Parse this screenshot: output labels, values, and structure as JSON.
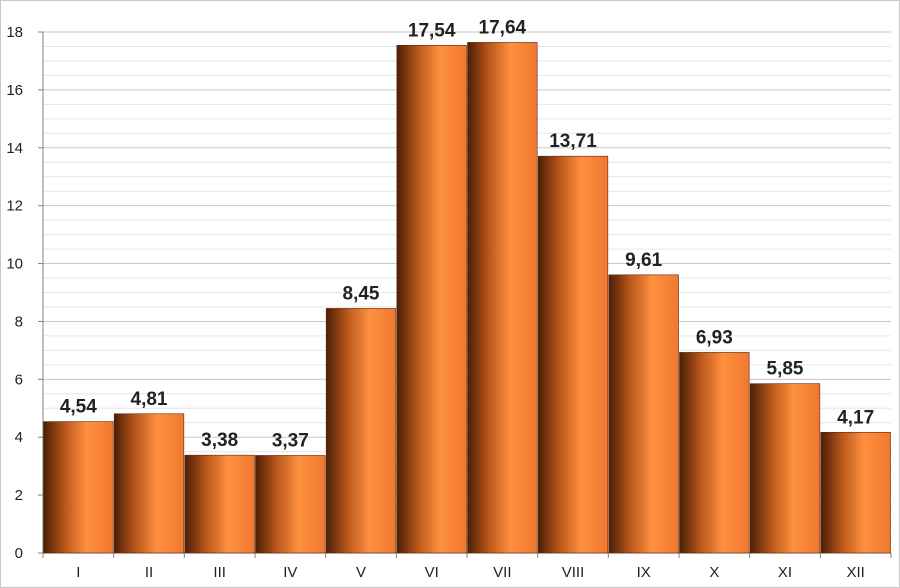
{
  "chart_data": {
    "type": "bar",
    "categories": [
      "I",
      "II",
      "III",
      "IV",
      "V",
      "VI",
      "VII",
      "VIII",
      "IX",
      "X",
      "XI",
      "XII"
    ],
    "values": [
      4.54,
      4.81,
      3.38,
      3.37,
      8.45,
      17.54,
      17.64,
      13.71,
      9.61,
      6.93,
      5.85,
      4.17
    ],
    "value_labels": [
      "4,54",
      "4,81",
      "3,38",
      "3,37",
      "8,45",
      "17,54",
      "17,64",
      "13,71",
      "9,61",
      "6,93",
      "5,85",
      "4,17"
    ],
    "title": "",
    "xlabel": "",
    "ylabel": "",
    "ylim": [
      0,
      18
    ],
    "yticks": [
      0,
      2,
      4,
      6,
      8,
      10,
      12,
      14,
      16,
      18
    ],
    "grid": true,
    "legend": false,
    "colors": {
      "bar_light": "#FF9040",
      "bar_dark": "#4A1E06",
      "major_grid": "#c8c8c8",
      "minor_grid": "#e6e6e6"
    }
  }
}
